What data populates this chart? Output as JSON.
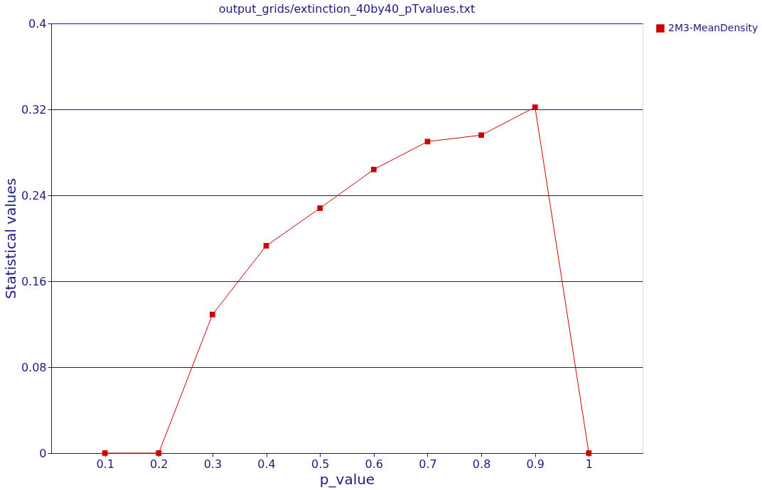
{
  "chart_data": {
    "type": "line",
    "title": "output_grids/extinction_40by40_pTvalues.txt",
    "xlabel": "p_value",
    "ylabel": "Statistical values",
    "x": [
      0.1,
      0.2,
      0.3,
      0.4,
      0.5,
      0.6,
      0.7,
      0.8,
      0.9,
      1
    ],
    "series": [
      {
        "name": "2M3-MeanDensity",
        "color": "#cc0000",
        "values": [
          0,
          0,
          0.129,
          0.193,
          0.228,
          0.264,
          0.29,
          0.296,
          0.322,
          0
        ]
      }
    ],
    "xlim": [
      0,
      1.1
    ],
    "xticks": [
      0.1,
      0.2,
      0.3,
      0.4,
      0.5,
      0.6,
      0.7,
      0.8,
      0.9,
      1
    ],
    "ylim": [
      0,
      0.4
    ],
    "yticks": [
      0,
      0.08,
      0.16,
      0.24,
      0.32,
      0.4
    ],
    "grid": "y",
    "legend": "right",
    "marker": "square",
    "line_style": "solid"
  }
}
